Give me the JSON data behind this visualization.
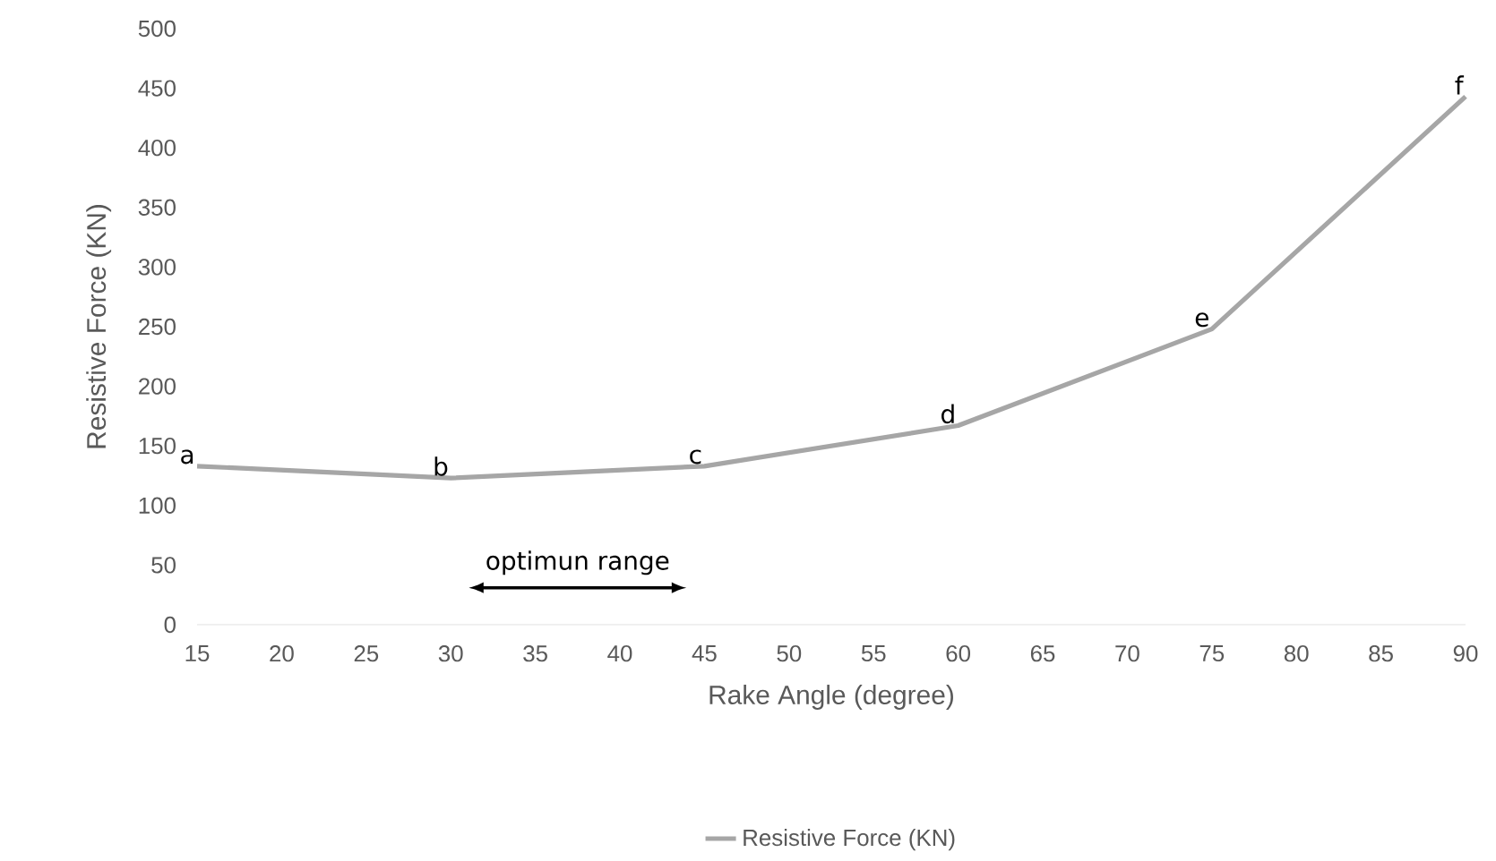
{
  "chart_data": {
    "type": "line",
    "xlabel": "Rake Angle (degree)",
    "ylabel": "Resistive Force (KN)",
    "x": [
      15,
      30,
      45,
      60,
      75,
      90
    ],
    "series": [
      {
        "name": "Resistive Force (KN)",
        "color": "#a6a6a6",
        "values": [
          133,
          123,
          133,
          167,
          248,
          443
        ]
      }
    ],
    "xlim": [
      15,
      90
    ],
    "xticks": [
      15,
      20,
      25,
      30,
      35,
      40,
      45,
      50,
      55,
      60,
      65,
      70,
      75,
      80,
      85,
      90
    ],
    "ylim": [
      0,
      500
    ],
    "yticks": [
      0,
      50,
      100,
      150,
      200,
      250,
      300,
      350,
      400,
      450,
      500
    ],
    "grid": false,
    "legend": "bottom",
    "marker": "none",
    "line_style": "solid",
    "annotations": [
      "optimun range",
      {
        "text": "a",
        "x": 15,
        "y": 133
      },
      {
        "text": "b",
        "x": 30,
        "y": 123
      },
      {
        "text": "c",
        "x": 45,
        "y": 133
      },
      {
        "text": "d",
        "x": 60,
        "y": 167
      },
      {
        "text": "e",
        "x": 75,
        "y": 248
      },
      {
        "text": "f",
        "x": 90,
        "y": 443
      }
    ]
  }
}
